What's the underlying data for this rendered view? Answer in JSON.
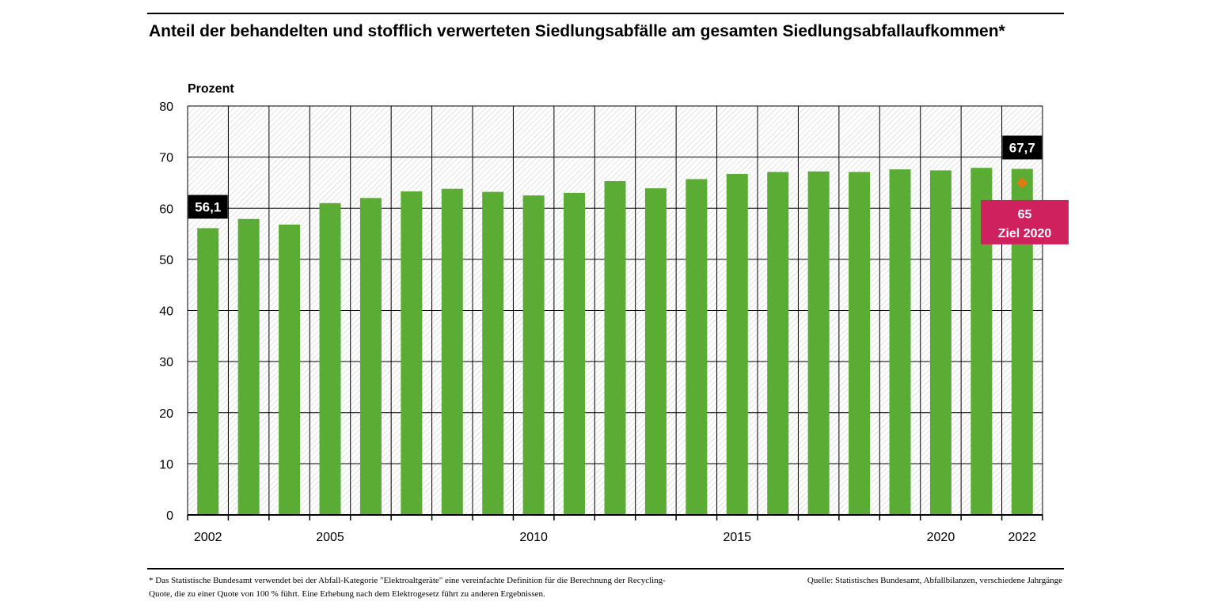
{
  "title": "Anteil der behandelten und stofflich verwerteten Siedlungsabfälle am gesamten Siedlungsabfallaufkommen*",
  "footnote": "* Das Statistische Bundesamt verwendet bei der Abfall-Kategorie \"Elektroaltgeräte\" eine vereinfachte Definition für die Berechnung der Recycling-Quote, die zu einer Quote von 100 % führt. Eine Erhebung nach dem Elektrogesetz führt zu anderen Ergebnissen.",
  "source": "Quelle: Statistisches Bundesamt, Abfallbilanzen, verschiedene Jahrgänge",
  "colors": {
    "bar": "#5aac34",
    "target_marker": "#e07b14",
    "target_box": "#d0215f",
    "label_box": "#000000"
  },
  "chart_data": {
    "type": "bar",
    "ylabel": "Prozent",
    "ylim": [
      0,
      80
    ],
    "yticks": [
      "0",
      "10",
      "20",
      "30",
      "40",
      "50",
      "60",
      "70",
      "80"
    ],
    "categories": [
      2002,
      2003,
      2004,
      2005,
      2006,
      2007,
      2008,
      2009,
      2010,
      2011,
      2012,
      2013,
      2014,
      2015,
      2016,
      2017,
      2018,
      2019,
      2020,
      2021,
      2022
    ],
    "xtick_labels": [
      "2002",
      "",
      "",
      "2005",
      "",
      "",
      "",
      "",
      "2010",
      "",
      "",
      "",
      "",
      "2015",
      "",
      "",
      "",
      "",
      "2020",
      "",
      "2022"
    ],
    "values": [
      56.1,
      57.9,
      56.8,
      61.0,
      62.0,
      63.3,
      63.8,
      63.2,
      62.5,
      63.0,
      65.3,
      63.9,
      65.7,
      66.7,
      67.1,
      67.2,
      67.1,
      67.6,
      67.4,
      67.9,
      67.7
    ],
    "data_labels": [
      {
        "category": 2002,
        "text": "56,1"
      },
      {
        "category": 2022,
        "text": "67,7"
      }
    ],
    "target": {
      "category": 2022,
      "value": 65,
      "label_value": "65",
      "label_text": "Ziel 2020"
    },
    "grid": true,
    "background_pattern": "diagonal-hatch"
  }
}
